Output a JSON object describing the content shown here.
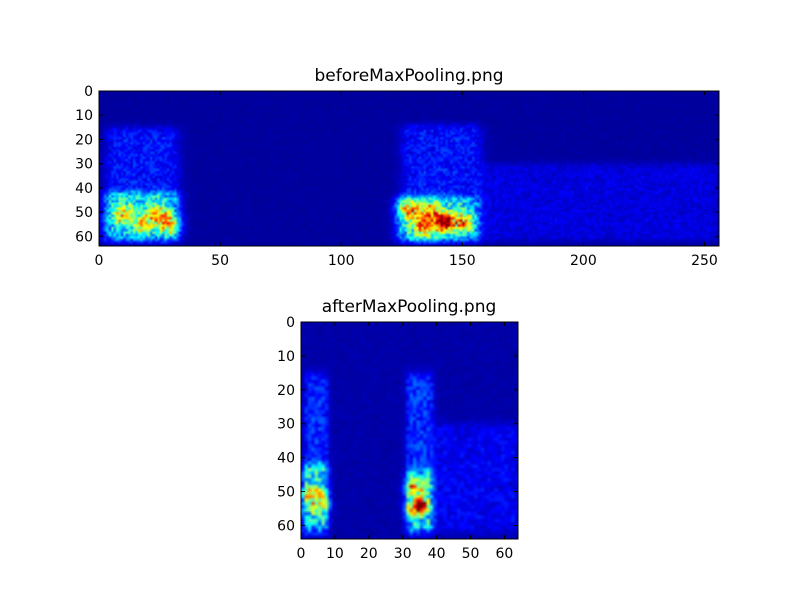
{
  "chart_data": [
    {
      "type": "heatmap",
      "title": "beforeMaxPooling.png",
      "colormap": "jet",
      "shape": [
        64,
        256
      ],
      "xlim": [
        0,
        256
      ],
      "ylim": [
        64,
        0
      ],
      "xticks": [
        0,
        50,
        100,
        150,
        200,
        250
      ],
      "yticks": [
        0,
        10,
        20,
        30,
        40,
        50,
        60
      ],
      "grid": false,
      "background_level": 0.03,
      "regions": [
        {
          "x": [
            3,
            33
          ],
          "y": [
            15,
            45
          ],
          "level": 0.12
        },
        {
          "x": [
            2,
            33
          ],
          "y": [
            42,
            62
          ],
          "level": 0.3
        },
        {
          "x": [
            125,
            158
          ],
          "y": [
            14,
            45
          ],
          "level": 0.12
        },
        {
          "x": [
            123,
            157
          ],
          "y": [
            44,
            62
          ],
          "level": 0.32
        },
        {
          "x": [
            158,
            256
          ],
          "y": [
            30,
            62
          ],
          "level": 0.07
        }
      ],
      "hotspots": [
        {
          "x": 10,
          "y": 51,
          "spread": 3,
          "level": 0.45
        },
        {
          "x": 24,
          "y": 51,
          "spread": 3,
          "level": 0.4
        },
        {
          "x": 29,
          "y": 55,
          "spread": 3,
          "level": 0.45
        },
        {
          "x": 18,
          "y": 55,
          "spread": 3,
          "level": 0.35
        },
        {
          "x": 143,
          "y": 54,
          "spread": 2.5,
          "level": 0.75
        },
        {
          "x": 135,
          "y": 55,
          "spread": 4,
          "level": 0.5
        },
        {
          "x": 128,
          "y": 49,
          "spread": 3,
          "level": 0.45
        },
        {
          "x": 150,
          "y": 54,
          "spread": 3,
          "level": 0.45
        },
        {
          "x": 138,
          "y": 49,
          "spread": 3,
          "level": 0.3
        }
      ]
    },
    {
      "type": "heatmap",
      "title": "afterMaxPooling.png",
      "colormap": "jet",
      "shape": [
        64,
        64
      ],
      "xlim": [
        0,
        64
      ],
      "ylim": [
        64,
        0
      ],
      "xticks": [
        0,
        10,
        20,
        30,
        40,
        50,
        60
      ],
      "yticks": [
        0,
        10,
        20,
        30,
        40,
        50,
        60
      ],
      "grid": false,
      "background_level": 0.04,
      "regions": [
        {
          "x": [
            1,
            8
          ],
          "y": [
            15,
            45
          ],
          "level": 0.13
        },
        {
          "x": [
            0.5,
            8
          ],
          "y": [
            42,
            62
          ],
          "level": 0.32
        },
        {
          "x": [
            31,
            39
          ],
          "y": [
            15,
            45
          ],
          "level": 0.14
        },
        {
          "x": [
            31,
            39
          ],
          "y": [
            44,
            62
          ],
          "level": 0.34
        },
        {
          "x": [
            39,
            64
          ],
          "y": [
            30,
            62
          ],
          "level": 0.08
        }
      ],
      "hotspots": [
        {
          "x": 2.5,
          "y": 50.5,
          "spread": 1.5,
          "level": 0.4
        },
        {
          "x": 6,
          "y": 50.5,
          "spread": 1.2,
          "level": 0.35
        },
        {
          "x": 3.5,
          "y": 54.5,
          "spread": 1.3,
          "level": 0.35
        },
        {
          "x": 7,
          "y": 54,
          "spread": 1.2,
          "level": 0.4
        },
        {
          "x": 35.5,
          "y": 54,
          "spread": 1.3,
          "level": 0.75
        },
        {
          "x": 33.5,
          "y": 55,
          "spread": 1.8,
          "level": 0.45
        },
        {
          "x": 32.5,
          "y": 49,
          "spread": 1.5,
          "level": 0.4
        },
        {
          "x": 36,
          "y": 49,
          "spread": 1.2,
          "level": 0.3
        }
      ]
    }
  ]
}
